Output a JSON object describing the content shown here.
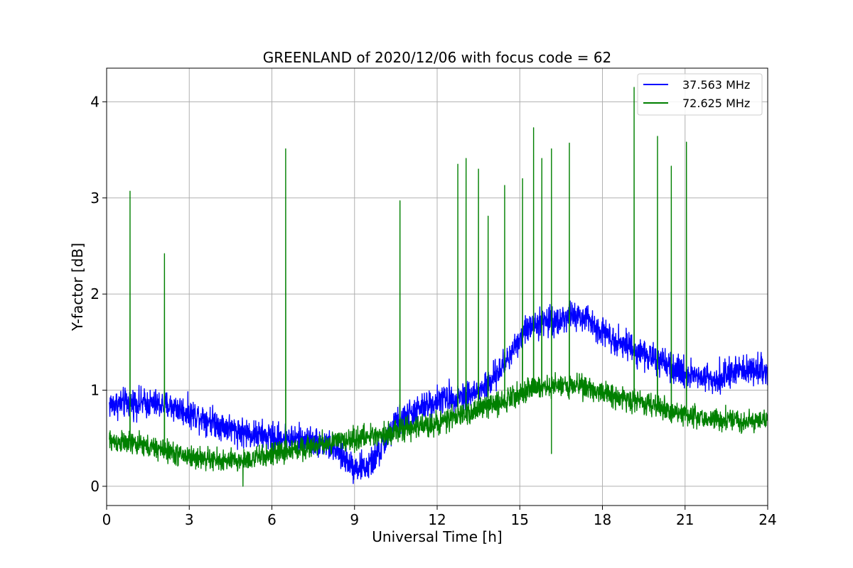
{
  "chart_data": {
    "type": "line",
    "title": "GREENLAND of 2020/12/06 with focus code = 62",
    "xlabel": "Universal Time [h]",
    "ylabel": "Y-factor [dB]",
    "xlim": [
      0,
      24
    ],
    "ylim": [
      -0.2,
      4.35
    ],
    "xticks": [
      0,
      3,
      6,
      9,
      12,
      15,
      18,
      21,
      24
    ],
    "yticks": [
      0,
      1,
      2,
      3,
      4
    ],
    "grid": true,
    "legend_position": "top-right",
    "series": [
      {
        "name": "37.563 MHz",
        "color": "#0000ff",
        "noise": 0.13,
        "x": [
          0.1,
          0.5,
          1.0,
          1.5,
          2.0,
          2.5,
          3.0,
          3.5,
          4.0,
          4.5,
          5.0,
          5.5,
          6.0,
          6.5,
          7.0,
          7.5,
          8.0,
          8.5,
          9.0,
          9.5,
          10.0,
          10.5,
          11.0,
          11.5,
          12.0,
          12.5,
          13.0,
          13.5,
          14.0,
          14.5,
          15.0,
          15.5,
          16.0,
          16.5,
          17.0,
          17.5,
          18.0,
          18.5,
          19.0,
          19.5,
          20.0,
          20.5,
          21.0,
          21.5,
          22.0,
          22.5,
          23.0,
          23.5,
          24.0
        ],
        "y": [
          0.85,
          0.86,
          0.87,
          0.86,
          0.85,
          0.82,
          0.76,
          0.72,
          0.66,
          0.6,
          0.56,
          0.53,
          0.51,
          0.5,
          0.49,
          0.47,
          0.44,
          0.33,
          0.2,
          0.2,
          0.4,
          0.66,
          0.75,
          0.82,
          0.9,
          0.92,
          0.95,
          0.98,
          1.1,
          1.3,
          1.55,
          1.7,
          1.72,
          1.74,
          1.78,
          1.72,
          1.62,
          1.52,
          1.45,
          1.38,
          1.3,
          1.22,
          1.18,
          1.15,
          1.12,
          1.16,
          1.2,
          1.22,
          1.2
        ]
      },
      {
        "name": "72.625 MHz",
        "color": "#008000",
        "noise": 0.1,
        "x": [
          0.1,
          0.5,
          1.0,
          1.5,
          2.0,
          2.5,
          3.0,
          3.5,
          4.0,
          4.5,
          5.0,
          5.5,
          6.0,
          6.5,
          7.0,
          7.5,
          8.0,
          8.5,
          9.0,
          9.5,
          10.0,
          10.5,
          11.0,
          11.5,
          12.0,
          12.5,
          13.0,
          13.5,
          14.0,
          14.5,
          15.0,
          15.5,
          16.0,
          16.5,
          17.0,
          17.5,
          18.0,
          18.5,
          19.0,
          19.5,
          20.0,
          20.5,
          21.0,
          21.5,
          22.0,
          22.5,
          23.0,
          23.5,
          24.0
        ],
        "y": [
          0.47,
          0.46,
          0.44,
          0.41,
          0.38,
          0.34,
          0.31,
          0.29,
          0.27,
          0.26,
          0.27,
          0.3,
          0.33,
          0.36,
          0.39,
          0.42,
          0.45,
          0.47,
          0.49,
          0.52,
          0.55,
          0.57,
          0.6,
          0.63,
          0.66,
          0.7,
          0.75,
          0.8,
          0.85,
          0.9,
          0.98,
          1.02,
          1.03,
          1.05,
          1.06,
          1.02,
          0.98,
          0.93,
          0.9,
          0.87,
          0.83,
          0.79,
          0.75,
          0.72,
          0.7,
          0.69,
          0.68,
          0.68,
          0.69
        ],
        "spikes": [
          {
            "x": 0.85,
            "y": 3.07
          },
          {
            "x": 2.1,
            "y": 2.42
          },
          {
            "x": 6.5,
            "y": 3.51
          },
          {
            "x": 10.65,
            "y": 2.97
          },
          {
            "x": 12.75,
            "y": 3.35
          },
          {
            "x": 13.05,
            "y": 3.41
          },
          {
            "x": 13.5,
            "y": 3.3
          },
          {
            "x": 13.85,
            "y": 2.81
          },
          {
            "x": 14.45,
            "y": 3.13
          },
          {
            "x": 15.1,
            "y": 3.2
          },
          {
            "x": 15.5,
            "y": 3.73
          },
          {
            "x": 15.8,
            "y": 3.41
          },
          {
            "x": 16.15,
            "y": 3.51
          },
          {
            "x": 16.8,
            "y": 3.57
          },
          {
            "x": 19.15,
            "y": 4.15
          },
          {
            "x": 20.0,
            "y": 3.64
          },
          {
            "x": 20.5,
            "y": 3.33
          },
          {
            "x": 21.05,
            "y": 3.58
          }
        ],
        "dips": [
          {
            "x": 4.95,
            "y": 0.0
          },
          {
            "x": 16.15,
            "y": 0.34
          }
        ]
      }
    ]
  }
}
